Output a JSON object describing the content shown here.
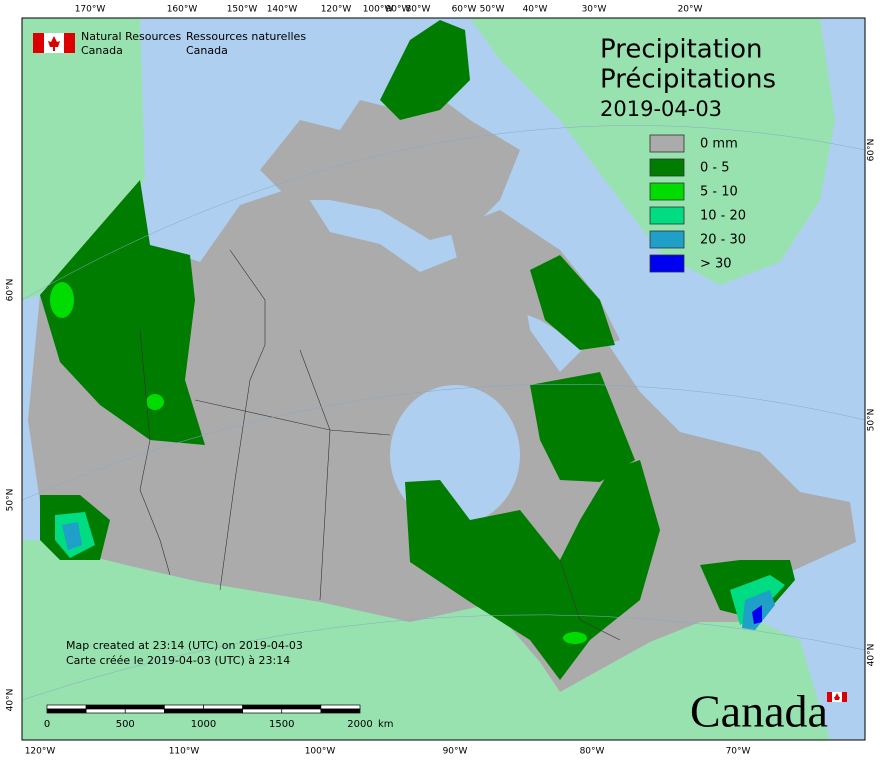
{
  "header": {
    "org_en_1": "Natural Resources",
    "org_en_2": "Canada",
    "org_fr_1": "Ressources naturelles",
    "org_fr_2": "Canada"
  },
  "title": {
    "en": "Precipitation",
    "fr": "Précipitations",
    "date": "2019-04-03"
  },
  "legend": [
    {
      "label": "0 mm",
      "color": "#ababab"
    },
    {
      "label": "0 - 5",
      "color": "#007d00"
    },
    {
      "label": "5 - 10",
      "color": "#00dc00"
    },
    {
      "label": "10 - 20",
      "color": "#00dc82"
    },
    {
      "label": "20 - 30",
      "color": "#1ea0c8"
    },
    {
      "label": "> 30",
      "color": "#0000f0"
    }
  ],
  "credits": [
    "Map created at 23:14 (UTC) on 2019-04-03",
    "Carte créée le 2019-04-03 (UTC) à 23:14"
  ],
  "scale_bar": {
    "labels": [
      "0",
      "500",
      "1000",
      "1500",
      "2000"
    ],
    "unit": "km"
  },
  "graticule": {
    "top": [
      "170°W",
      "160°W",
      "150°W",
      "140°W",
      "120°W",
      "100°W",
      "90°W",
      "80°W",
      "60°W",
      "50°W",
      "40°W",
      "30°W",
      "20°W"
    ],
    "bottom": [
      "120°W",
      "110°W",
      "100°W",
      "90°W",
      "80°W",
      "70°W"
    ],
    "left": [
      "60°N",
      "50°N",
      "40°N"
    ],
    "right": [
      "60°N",
      "50°N",
      "40°N"
    ]
  },
  "wordmark": "Canada"
}
